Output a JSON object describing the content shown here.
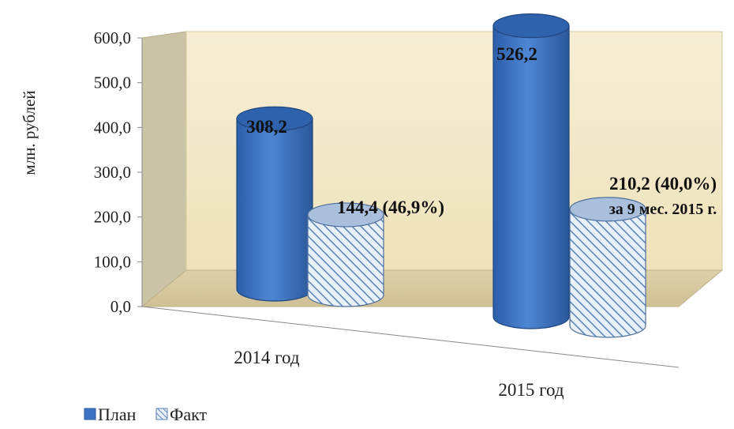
{
  "chart_data": {
    "type": "bar",
    "style": "3d-cylinder",
    "categories": [
      "2014 год",
      "2015 год"
    ],
    "series": [
      {
        "name": "План",
        "values": [
          308.2,
          526.2
        ],
        "color": "#3d73c4",
        "fill": "solid"
      },
      {
        "name": "Факт",
        "values": [
          144.4,
          210.2
        ],
        "color": "#cfdff0",
        "fill": "diagonal-hatch"
      }
    ],
    "data_labels": [
      [
        "308,2",
        "526,2"
      ],
      [
        "144,4 (46,9%)",
        "210,2 (40,0%)"
      ]
    ],
    "annotations": [
      "за 9 мес. 2015 г."
    ],
    "ylabel": "млн. рублей",
    "yticks": [
      "0,0",
      "100,0",
      "200,0",
      "300,0",
      "400,0",
      "500,0",
      "600,0"
    ],
    "ylim": [
      0,
      600
    ],
    "legend_position": "bottom-left",
    "grid": false,
    "background_colors": {
      "back_wall": "#f3e8c7",
      "floor": "#d8cba2",
      "side_wall": "#c9c0a2"
    }
  }
}
